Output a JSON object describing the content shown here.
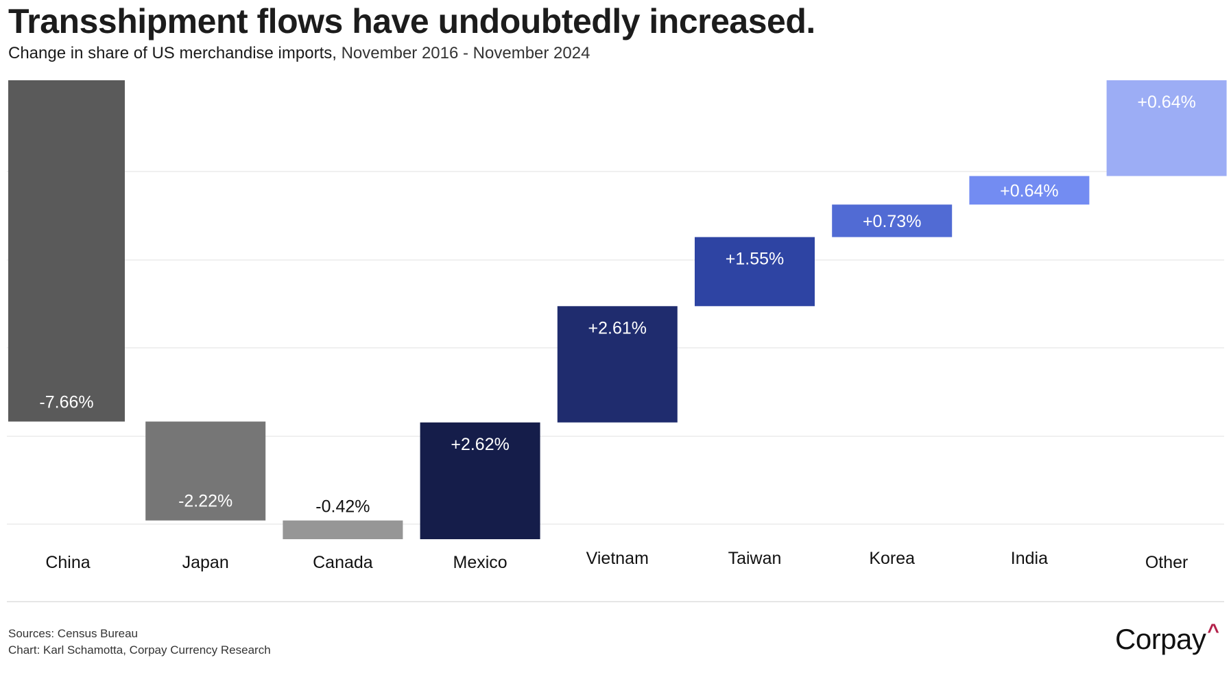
{
  "header": {
    "title": "Transshipment flows have undoubtedly increased.",
    "subtitle_lead": "Change in share of US merchandise imports,",
    "subtitle_range": "November 2016 - November 2024"
  },
  "chart_data": {
    "type": "bar",
    "subtype": "waterfall",
    "title": "Transshipment flows have undoubtedly increased.",
    "subtitle": "Change in share of US merchandise imports, November 2016 - November 2024",
    "xlabel": "",
    "ylabel": "",
    "unit": "percentage points",
    "grid": true,
    "legend": "none",
    "categories": [
      "China",
      "Japan",
      "Canada",
      "Mexico",
      "Vietnam",
      "Taiwan",
      "Korea",
      "India",
      "Other"
    ],
    "values": [
      -7.66,
      -2.22,
      -0.42,
      2.62,
      2.61,
      1.55,
      0.73,
      0.64,
      0.64
    ],
    "labels": [
      "-7.66%",
      "-2.22%",
      "-0.42%",
      "+2.62%",
      "+2.61%",
      "+1.55%",
      "+0.73%",
      "+0.64%",
      "+0.64%"
    ],
    "colors": [
      "#5a5a5a",
      "#767676",
      "#969696",
      "#151d4a",
      "#1f2c6e",
      "#2e44a3",
      "#516bd4",
      "#738cf2",
      "#9cadf5"
    ],
    "label_colors": [
      "#ffffff",
      "#ffffff",
      "#111111",
      "#ffffff",
      "#ffffff",
      "#ffffff",
      "#ffffff",
      "#ffffff",
      "#ffffff"
    ],
    "other_closes_to_start": true
  },
  "footer": {
    "sources": "Sources: Census Bureau",
    "credit": "Chart: Karl Schamotta, Corpay Currency Research"
  },
  "logo": {
    "text": "Corpay",
    "mark": "^",
    "mark_color": "#b3214a"
  }
}
